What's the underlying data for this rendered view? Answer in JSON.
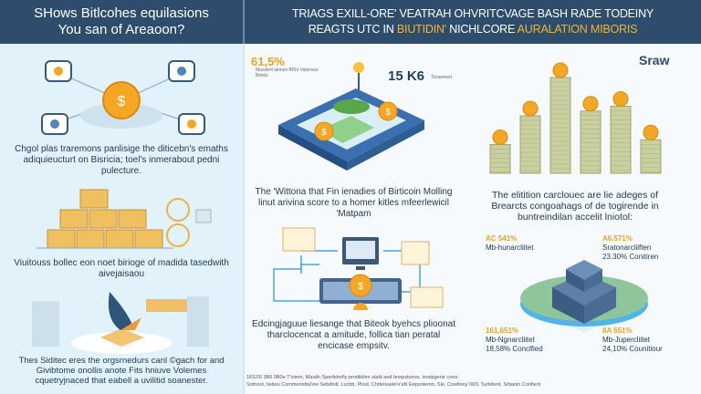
{
  "header": {
    "left_title_line1": "SHows Bitlcohes equilasions",
    "left_title_line2": "You san of Areaoon?",
    "right_title_line1": "TRIAGS EXILL-ORE' VEATRAH OHVRITCVAGE BASH RADE TODEINY",
    "right_title_line2_a": "REAGTS UTC IN ",
    "right_title_line2_b": "BIUTIDIN'",
    "right_title_line2_c": " NICHLCORE ",
    "right_title_line2_d": "AURALATION MIBORIS"
  },
  "left": {
    "text1": "Chgol plas traremons panlisige the diticebn's emaths adiquieucturt on Bisricia; toel's inmerabout pedni pulecture.",
    "text2": "Viuitouss bollec eon noet birioge of madida tasedwith aivejaisaou",
    "text3": "Thes Siditec eres the orgsrnedurs canl ©gach for and Givibtome onollis anote Fits hniuve Volemes cquetryjnaced that eabell a uvilitid soanester."
  },
  "middle": {
    "stat1_value": "61,5%",
    "stat1_caption": "Mussiert airines BfSo Vaninsus Betxis",
    "stat2_value": "15 K6",
    "stat2_caption": "Tsosemert",
    "text1": "The 'Wittona that Fin ienadies of Birticoin Molling linut arivina score to a homer kitles mfeerlewicil 'Matpam",
    "text2": "Edcingjaguue liesange that Biteok byehcs plioonat tharclocencat a amitude, follica tian peratal encicase empsitv."
  },
  "right": {
    "logo": "Sraw",
    "text1": "The elitition carclouec are lie adeges of Brearcts congoahags of de togirende in buntreindilan accelit lniotol:",
    "labels": [
      {
        "value": "AC 541%",
        "caption": "Mb-hunarcliitet",
        "extra": ""
      },
      {
        "value": "A6.571%",
        "caption": "Sratonarcliiften",
        "extra": "23.30% Conitiren"
      },
      {
        "value": "161,651%",
        "caption": "Mb-Ngnarcliitet",
        "extra": "18,58% Conclfied"
      },
      {
        "value": "8A 651%",
        "caption": "Mb-Jupercliitet",
        "extra": "24,10% Counitiour"
      }
    ],
    "bar_levels": [
      0.3,
      0.6,
      1.0,
      0.65,
      0.7,
      0.35
    ]
  },
  "footer": {
    "line1": "16S3'6 3B6 0B0e  T'ioiem, Masdn Sperfelerfiy prndikilen staib and bnepstunos, irnsipgene cono.",
    "line2": "Sotnoot, Iiebos Commennttal'ew Sebdiotl, Lucbb, Pliod, Chrtelssele'e'aN Eeponlemn, Sle, Cowfiony IW3, Syrkitent, Srbanin Confient"
  },
  "colors": {
    "header": "#2e4d6c",
    "accent": "#f1b434",
    "left_bg": "#e2f2fa",
    "coin": "#f5a623"
  }
}
